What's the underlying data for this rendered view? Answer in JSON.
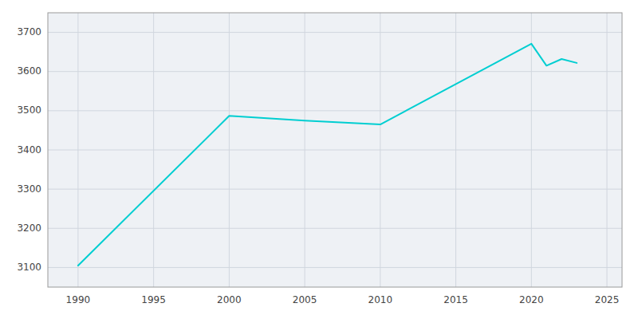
{
  "chart_data": {
    "type": "line",
    "x": [
      1990,
      2000,
      2005,
      2010,
      2020,
      2021,
      2022,
      2023
    ],
    "values": [
      3105,
      3487,
      3475,
      3465,
      3671,
      3615,
      3632,
      3622
    ],
    "color": "#00CED1",
    "xlim": [
      1988,
      2026
    ],
    "ylim": [
      3050,
      3750
    ],
    "xticks": [
      1990,
      1995,
      2000,
      2005,
      2010,
      2015,
      2020,
      2025
    ],
    "yticks": [
      3100,
      3200,
      3300,
      3400,
      3500,
      3600,
      3700
    ],
    "grid": true
  }
}
